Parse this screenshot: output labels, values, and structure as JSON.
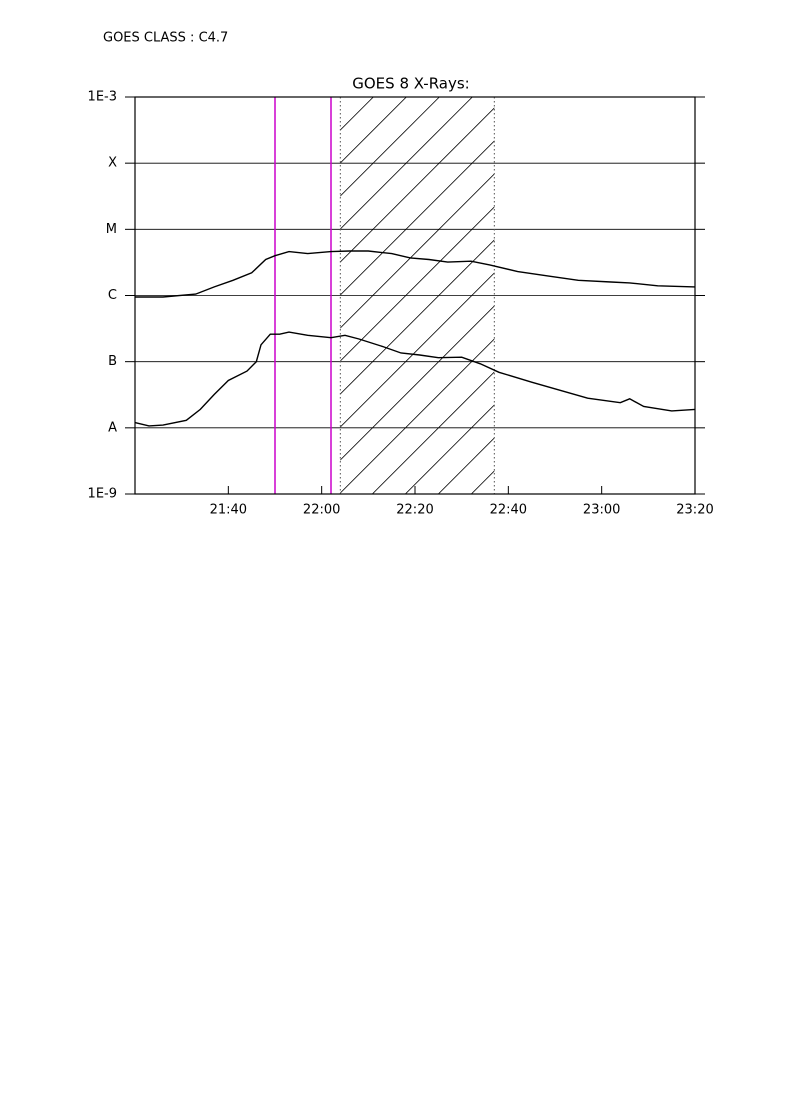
{
  "chart_data": {
    "type": "line",
    "annotation": "GOES CLASS : C4.7",
    "title": "GOES 8 X-Rays:",
    "log_y": true,
    "grid": true,
    "xlim": [
      "21:20",
      "23:20"
    ],
    "xticks": [
      "21:40",
      "22:00",
      "22:20",
      "22:40",
      "23:00",
      "23:20"
    ],
    "ylim": [
      1e-09,
      0.001
    ],
    "yticks": [
      {
        "value": 1e-09,
        "label": "1E-9"
      },
      {
        "value": 1e-08,
        "label": "A"
      },
      {
        "value": 1e-07,
        "label": "B"
      },
      {
        "value": 1e-06,
        "label": "C"
      },
      {
        "value": 1e-05,
        "label": "M"
      },
      {
        "value": 0.0001,
        "label": "X"
      },
      {
        "value": 0.001,
        "label": "1E-3"
      }
    ],
    "vlines": [
      {
        "x": "21:50",
        "color": "#cc00cc"
      },
      {
        "x": "22:02",
        "color": "#cc00cc"
      }
    ],
    "hatch": [
      "22:04",
      "22:37"
    ],
    "series": [
      {
        "color": "#000000",
        "x": [
          "21:20",
          "21:26",
          "21:33",
          "21:37",
          "21:41",
          "21:45",
          "21:48",
          "21:50",
          "21:53",
          "21:57",
          "22:02",
          "22:06",
          "22:10",
          "22:15",
          "22:19",
          "22:23",
          "22:27",
          "22:32",
          "22:36",
          "22:42",
          "22:49",
          "22:55",
          "23:02",
          "23:06",
          "23:12",
          "23:20"
        ],
        "values": [
          9.5e-07,
          9.5e-07,
          1.05e-06,
          1.35e-06,
          1.7e-06,
          2.2e-06,
          3.5e-06,
          4e-06,
          4.6e-06,
          4.3e-06,
          4.6e-06,
          4.7e-06,
          4.7e-06,
          4.3e-06,
          3.7e-06,
          3.5e-06,
          3.2e-06,
          3.3e-06,
          2.9e-06,
          2.3e-06,
          1.95e-06,
          1.7e-06,
          1.6e-06,
          1.55e-06,
          1.4e-06,
          1.35e-06
        ]
      },
      {
        "color": "#000000",
        "x": [
          "21:20",
          "21:23",
          "21:26",
          "21:31",
          "21:34",
          "21:37",
          "21:40",
          "21:44",
          "21:46",
          "21:47",
          "21:49",
          "21:51",
          "21:53",
          "21:57",
          "22:02",
          "22:05",
          "22:08",
          "22:13",
          "22:17",
          "22:21",
          "22:25",
          "22:30",
          "22:34",
          "22:38",
          "22:45",
          "22:51",
          "22:57",
          "23:04",
          "23:06",
          "23:09",
          "23:15",
          "23:20"
        ],
        "values": [
          1.2e-08,
          1.07e-08,
          1.1e-08,
          1.3e-08,
          1.9e-08,
          3.2e-08,
          5.2e-08,
          7.2e-08,
          1e-07,
          1.8e-07,
          2.6e-07,
          2.6e-07,
          2.8e-07,
          2.5e-07,
          2.3e-07,
          2.5e-07,
          2.2e-07,
          1.7e-07,
          1.35e-07,
          1.26e-07,
          1.15e-07,
          1.17e-07,
          9.3e-08,
          6.9e-08,
          4.9e-08,
          3.7e-08,
          2.8e-08,
          2.4e-08,
          2.75e-08,
          2.1e-08,
          1.8e-08,
          1.9e-08
        ]
      }
    ]
  }
}
